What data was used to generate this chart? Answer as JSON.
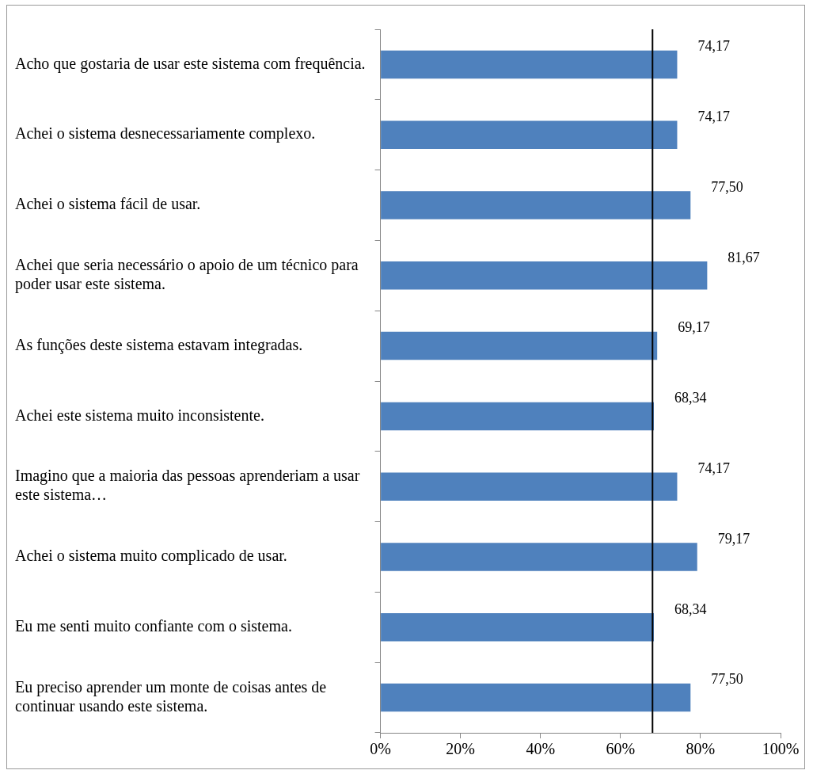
{
  "chart_data": {
    "type": "bar",
    "orientation": "horizontal",
    "categories": [
      "Acho que gostaria de usar este sistema com frequência.",
      "Achei o sistema desnecessariamente complexo.",
      "Achei o sistema fácil de usar.",
      "Achei que seria necessário o apoio de um técnico para poder usar este sistema.",
      "As funções deste sistema estavam integradas.",
      "Achei este sistema muito inconsistente.",
      "Imagino que a maioria das pessoas aprenderiam a usar este sistema…",
      "Achei o sistema muito complicado de usar.",
      "Eu me senti muito confiante com o sistema.",
      "Eu preciso aprender um monte de coisas antes de continuar usando este sistema."
    ],
    "values": [
      74.17,
      74.17,
      77.5,
      81.67,
      69.17,
      68.34,
      74.17,
      79.17,
      68.34,
      77.5
    ],
    "value_labels": [
      "74,17",
      "74,17",
      "77,50",
      "81,67",
      "69,17",
      "68,34",
      "74,17",
      "79,17",
      "68,34",
      "77,50"
    ],
    "color": "#4f81bd",
    "xlim": [
      0,
      100
    ],
    "xticks": [
      {
        "value": 0,
        "label": "0%"
      },
      {
        "value": 20,
        "label": "20%"
      },
      {
        "value": 40,
        "label": "40%"
      },
      {
        "value": 60,
        "label": "60%"
      },
      {
        "value": 80,
        "label": "80%"
      },
      {
        "value": 100,
        "label": "100%"
      }
    ],
    "ref_lines": [
      {
        "axis": "x",
        "value": 68,
        "color": "#000000"
      }
    ],
    "grid": false,
    "legend": false
  }
}
